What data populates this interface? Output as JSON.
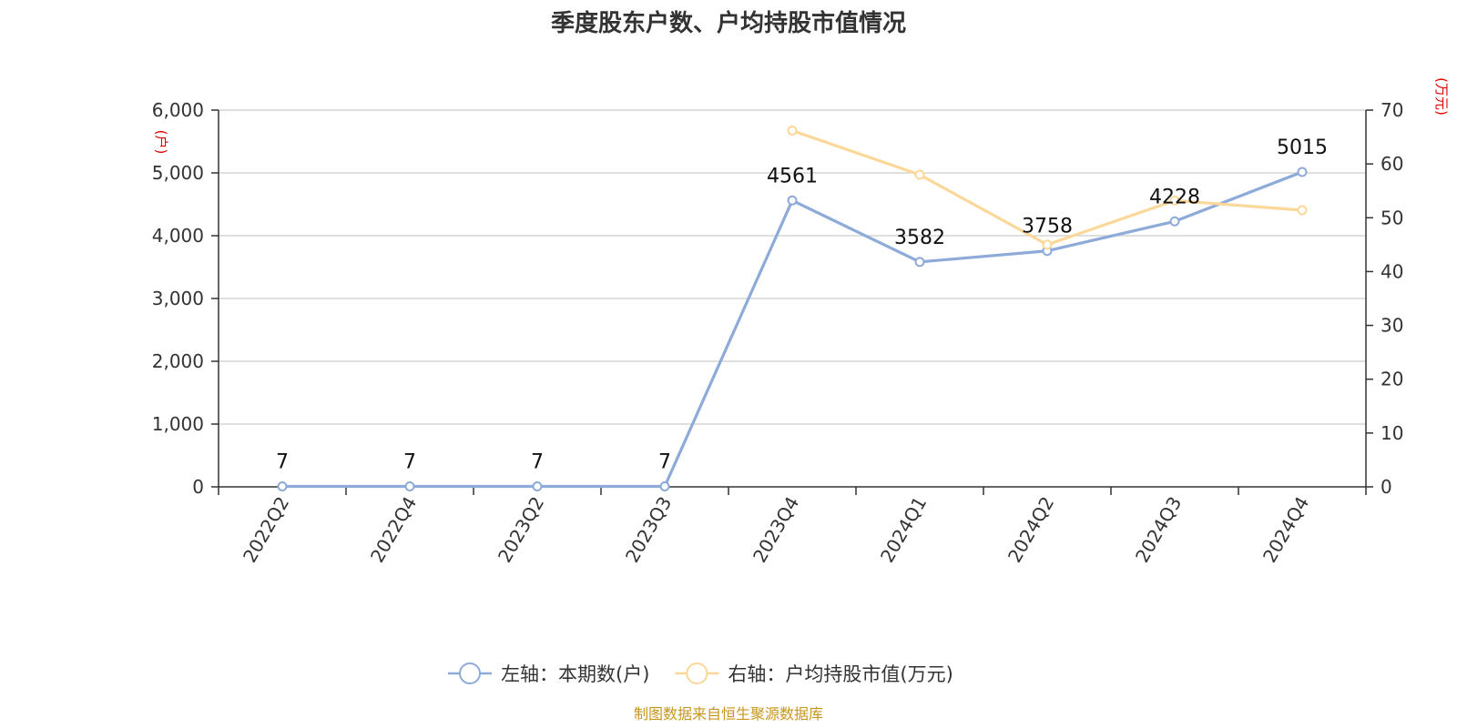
{
  "title": "季度股东户数、户均持股市值情况",
  "source": "制图数据来自恒生聚源数据库",
  "chart_data": {
    "type": "line",
    "categories": [
      "2022Q2",
      "2022Q4",
      "2023Q2",
      "2023Q3",
      "2023Q4",
      "2024Q1",
      "2024Q2",
      "2024Q3",
      "2024Q4"
    ],
    "left_axis": {
      "unit": "(户)",
      "ylim": [
        0,
        6000
      ],
      "ticks": [
        "0",
        "1,000",
        "2,000",
        "3,000",
        "4,000",
        "5,000",
        "6,000"
      ]
    },
    "right_axis": {
      "unit": "(万元)",
      "ylim": [
        0,
        70
      ],
      "ticks": [
        "0",
        "10",
        "20",
        "30",
        "40",
        "50",
        "60",
        "70"
      ]
    },
    "series": [
      {
        "name": "左轴：本期数(户)",
        "axis": "left",
        "color": "#8eaad8",
        "values": [
          7,
          7,
          7,
          7,
          4561,
          3582,
          3758,
          4228,
          5015
        ],
        "labels": [
          "7",
          "7",
          "7",
          "7",
          "4561",
          "3582",
          "3758",
          "4228",
          "5015"
        ]
      },
      {
        "name": "右轴：户均持股市值(万元)",
        "axis": "right",
        "color": "#fbd89a",
        "values": [
          null,
          null,
          null,
          null,
          66.2,
          58.0,
          45.0,
          53.2,
          51.4
        ]
      }
    ],
    "grid": true,
    "legend_position": "bottom-center"
  }
}
